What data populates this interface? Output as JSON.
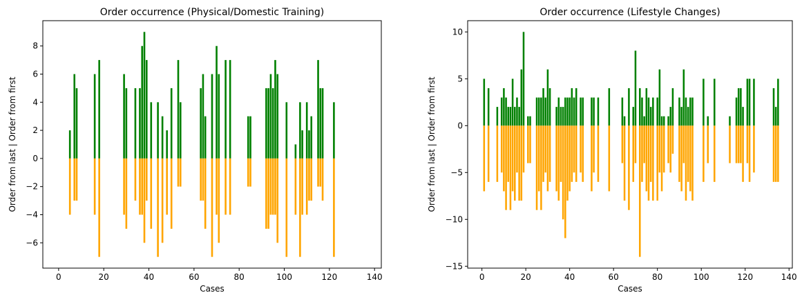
{
  "chart_data": [
    {
      "type": "bar",
      "title": "Order occurrence (Physical/Domestic Training)",
      "xlabel": "Cases",
      "ylabel": "Order from last | Order from first",
      "xlim": [
        -7,
        143
      ],
      "ylim": [
        -7.8,
        9.8
      ],
      "xticks": [
        0,
        20,
        40,
        60,
        80,
        100,
        120,
        140
      ],
      "yticks": [
        -6,
        -4,
        -2,
        0,
        2,
        4,
        6,
        8
      ],
      "colors": {
        "positive": "#008000",
        "negative": "#ffa500"
      },
      "series": [
        {
          "values": [
            [
              5,
              2
            ],
            [
              7,
              6
            ],
            [
              8,
              5
            ],
            [
              16,
              6
            ],
            [
              18,
              7
            ],
            [
              29,
              6
            ],
            [
              30,
              5
            ],
            [
              34,
              5
            ],
            [
              36,
              5
            ],
            [
              37,
              8
            ],
            [
              38,
              9
            ],
            [
              39,
              7
            ],
            [
              41,
              4
            ],
            [
              44,
              4
            ],
            [
              46,
              3
            ],
            [
              48,
              2
            ],
            [
              50,
              5
            ],
            [
              53,
              7
            ],
            [
              54,
              4
            ],
            [
              63,
              5
            ],
            [
              64,
              6
            ],
            [
              65,
              3
            ],
            [
              68,
              6
            ],
            [
              70,
              8
            ],
            [
              71,
              6
            ],
            [
              74,
              7
            ],
            [
              76,
              7
            ],
            [
              84,
              3
            ],
            [
              85,
              3
            ],
            [
              92,
              5
            ],
            [
              93,
              5
            ],
            [
              94,
              6
            ],
            [
              95,
              5
            ],
            [
              96,
              7
            ],
            [
              97,
              6
            ],
            [
              101,
              4
            ],
            [
              105,
              1
            ],
            [
              107,
              4
            ],
            [
              108,
              2
            ],
            [
              110,
              4
            ],
            [
              111,
              2
            ],
            [
              112,
              3
            ],
            [
              115,
              7
            ],
            [
              116,
              5
            ],
            [
              117,
              5
            ],
            [
              122,
              4
            ]
          ]
        },
        {
          "values": [
            [
              5,
              -4
            ],
            [
              7,
              -3
            ],
            [
              8,
              -3
            ],
            [
              16,
              -4
            ],
            [
              18,
              -7
            ],
            [
              29,
              -4
            ],
            [
              30,
              -5
            ],
            [
              34,
              -3
            ],
            [
              36,
              -4
            ],
            [
              37,
              -4
            ],
            [
              38,
              -6
            ],
            [
              39,
              -3
            ],
            [
              41,
              -5
            ],
            [
              44,
              -7
            ],
            [
              46,
              -6
            ],
            [
              48,
              -4
            ],
            [
              50,
              -5
            ],
            [
              53,
              -2
            ],
            [
              54,
              -2
            ],
            [
              63,
              -3
            ],
            [
              64,
              -3
            ],
            [
              65,
              -5
            ],
            [
              68,
              -7
            ],
            [
              70,
              -4
            ],
            [
              71,
              -6
            ],
            [
              74,
              -4
            ],
            [
              76,
              -4
            ],
            [
              84,
              -2
            ],
            [
              85,
              -2
            ],
            [
              92,
              -5
            ],
            [
              93,
              -5
            ],
            [
              94,
              -4
            ],
            [
              95,
              -4
            ],
            [
              96,
              -4
            ],
            [
              97,
              -6
            ],
            [
              101,
              -7
            ],
            [
              105,
              -4
            ],
            [
              107,
              -7
            ],
            [
              108,
              -4
            ],
            [
              110,
              -4
            ],
            [
              111,
              -3
            ],
            [
              112,
              -3
            ],
            [
              115,
              -2
            ],
            [
              116,
              -2
            ],
            [
              117,
              -3
            ],
            [
              122,
              -7
            ]
          ]
        }
      ]
    },
    {
      "type": "bar",
      "title": "Order occurrence (Lifestyle Changes)",
      "xlabel": "Cases",
      "ylabel": "Order from last | Order from first",
      "xlim": [
        -6.5,
        141.5
      ],
      "ylim": [
        -15.2,
        11.2
      ],
      "xticks": [
        0,
        20,
        40,
        60,
        80,
        100,
        120,
        140
      ],
      "yticks": [
        -15,
        -10,
        -5,
        0,
        5,
        10
      ],
      "colors": {
        "positive": "#008000",
        "negative": "#ffa500"
      },
      "series": [
        {
          "values": [
            [
              1,
              5
            ],
            [
              3,
              4
            ],
            [
              7,
              2
            ],
            [
              9,
              3
            ],
            [
              10,
              4
            ],
            [
              11,
              3
            ],
            [
              12,
              2
            ],
            [
              13,
              2
            ],
            [
              14,
              5
            ],
            [
              15,
              2
            ],
            [
              16,
              3
            ],
            [
              17,
              2
            ],
            [
              18,
              6
            ],
            [
              19,
              10
            ],
            [
              21,
              1
            ],
            [
              22,
              1
            ],
            [
              25,
              3
            ],
            [
              26,
              3
            ],
            [
              27,
              3
            ],
            [
              28,
              4
            ],
            [
              29,
              3
            ],
            [
              30,
              6
            ],
            [
              31,
              4
            ],
            [
              34,
              2
            ],
            [
              35,
              3
            ],
            [
              36,
              2
            ],
            [
              37,
              2
            ],
            [
              38,
              3
            ],
            [
              39,
              3
            ],
            [
              40,
              3
            ],
            [
              41,
              4
            ],
            [
              42,
              3
            ],
            [
              43,
              4
            ],
            [
              45,
              3
            ],
            [
              46,
              3
            ],
            [
              50,
              3
            ],
            [
              51,
              3
            ],
            [
              53,
              3
            ],
            [
              58,
              4
            ],
            [
              64,
              3
            ],
            [
              65,
              1
            ],
            [
              67,
              4
            ],
            [
              69,
              2
            ],
            [
              70,
              8
            ],
            [
              72,
              4
            ],
            [
              73,
              3
            ],
            [
              74,
              1
            ],
            [
              75,
              4
            ],
            [
              76,
              3
            ],
            [
              77,
              2
            ],
            [
              78,
              3
            ],
            [
              80,
              3
            ],
            [
              81,
              6
            ],
            [
              82,
              1
            ],
            [
              83,
              1
            ],
            [
              85,
              1
            ],
            [
              86,
              2
            ],
            [
              87,
              4
            ],
            [
              90,
              3
            ],
            [
              91,
              2
            ],
            [
              92,
              6
            ],
            [
              93,
              3
            ],
            [
              94,
              2
            ],
            [
              95,
              3
            ],
            [
              96,
              3
            ],
            [
              101,
              5
            ],
            [
              103,
              1
            ],
            [
              106,
              5
            ],
            [
              113,
              1
            ],
            [
              116,
              3
            ],
            [
              117,
              4
            ],
            [
              118,
              4
            ],
            [
              119,
              2
            ],
            [
              121,
              5
            ],
            [
              122,
              5
            ],
            [
              124,
              5
            ],
            [
              133,
              4
            ],
            [
              134,
              2
            ],
            [
              135,
              5
            ]
          ]
        },
        {
          "values": [
            [
              1,
              -7
            ],
            [
              3,
              -6
            ],
            [
              7,
              -6
            ],
            [
              9,
              -5
            ],
            [
              10,
              -7
            ],
            [
              11,
              -9
            ],
            [
              12,
              -6
            ],
            [
              13,
              -9
            ],
            [
              14,
              -7
            ],
            [
              15,
              -8
            ],
            [
              16,
              -5
            ],
            [
              17,
              -8
            ],
            [
              18,
              -8
            ],
            [
              19,
              -5
            ],
            [
              21,
              -4
            ],
            [
              22,
              -4
            ],
            [
              25,
              -9
            ],
            [
              26,
              -7
            ],
            [
              27,
              -9
            ],
            [
              28,
              -6
            ],
            [
              29,
              -5
            ],
            [
              30,
              -7
            ],
            [
              31,
              -6
            ],
            [
              34,
              -7
            ],
            [
              35,
              -8
            ],
            [
              36,
              -6
            ],
            [
              37,
              -10
            ],
            [
              38,
              -12
            ],
            [
              39,
              -8
            ],
            [
              40,
              -7
            ],
            [
              41,
              -6
            ],
            [
              42,
              -5
            ],
            [
              43,
              -6
            ],
            [
              45,
              -5
            ],
            [
              46,
              -6
            ],
            [
              50,
              -7
            ],
            [
              51,
              -5
            ],
            [
              53,
              -6
            ],
            [
              58,
              -7
            ],
            [
              64,
              -4
            ],
            [
              65,
              -8
            ],
            [
              67,
              -9
            ],
            [
              69,
              -6
            ],
            [
              70,
              -4
            ],
            [
              72,
              -14
            ],
            [
              73,
              -6
            ],
            [
              74,
              -4
            ],
            [
              75,
              -7
            ],
            [
              76,
              -8
            ],
            [
              77,
              -6
            ],
            [
              78,
              -8
            ],
            [
              80,
              -8
            ],
            [
              81,
              -5
            ],
            [
              82,
              -7
            ],
            [
              83,
              -5
            ],
            [
              85,
              -4
            ],
            [
              86,
              -5
            ],
            [
              87,
              -3
            ],
            [
              90,
              -6
            ],
            [
              91,
              -7
            ],
            [
              92,
              -4
            ],
            [
              93,
              -8
            ],
            [
              94,
              -6
            ],
            [
              95,
              -7
            ],
            [
              96,
              -8
            ],
            [
              101,
              -6
            ],
            [
              103,
              -4
            ],
            [
              106,
              -6
            ],
            [
              113,
              -4
            ],
            [
              116,
              -4
            ],
            [
              117,
              -4
            ],
            [
              118,
              -4
            ],
            [
              119,
              -6
            ],
            [
              121,
              -4
            ],
            [
              122,
              -6
            ],
            [
              124,
              -5
            ],
            [
              133,
              -6
            ],
            [
              134,
              -6
            ],
            [
              135,
              -6
            ]
          ]
        }
      ]
    }
  ]
}
